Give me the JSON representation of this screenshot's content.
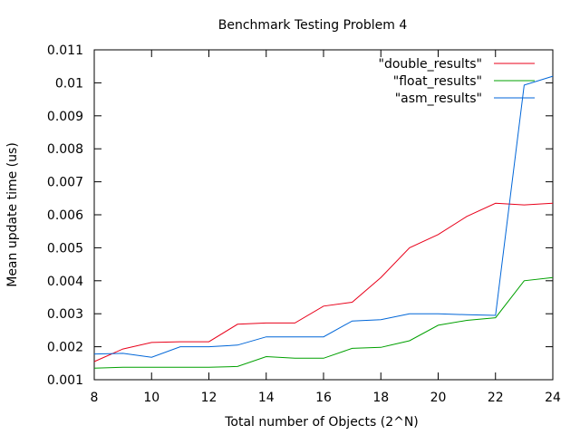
{
  "chart_data": {
    "type": "line",
    "title": "Benchmark Testing Problem 4",
    "xlabel": "Total number of Objects (2^N)",
    "ylabel": "Mean update time  (us)",
    "xlim": [
      8,
      24
    ],
    "ylim": [
      0.001,
      0.011
    ],
    "x_ticks": [
      8,
      10,
      12,
      14,
      16,
      18,
      20,
      22,
      24
    ],
    "y_ticks": [
      0.001,
      0.002,
      0.003,
      0.004,
      0.005,
      0.006,
      0.007,
      0.008,
      0.009,
      0.01,
      0.011
    ],
    "x_tick_labels": [
      "8",
      "10",
      "12",
      "14",
      "16",
      "18",
      "20",
      "22",
      "24"
    ],
    "y_tick_labels": [
      "0.001",
      "0.002",
      "0.003",
      "0.004",
      "0.005",
      "0.006",
      "0.007",
      "0.008",
      "0.009",
      "0.01",
      "0.011"
    ],
    "grid": false,
    "legend_position": "top-right",
    "x": [
      8,
      9,
      10,
      11,
      12,
      13,
      14,
      15,
      16,
      17,
      18,
      19,
      20,
      21,
      22,
      23,
      24
    ],
    "series": [
      {
        "name": "\"double_results\"",
        "color": "#e8001a",
        "values": [
          0.00155,
          0.00193,
          0.00213,
          0.00215,
          0.00215,
          0.00268,
          0.00272,
          0.00272,
          0.00323,
          0.00335,
          0.0041,
          0.005,
          0.0054,
          0.00595,
          0.00635,
          0.0063,
          0.00635
        ]
      },
      {
        "name": "\"float_results\"",
        "color": "#00a000",
        "values": [
          0.00135,
          0.00138,
          0.00138,
          0.00138,
          0.00138,
          0.0014,
          0.0017,
          0.00165,
          0.00165,
          0.00195,
          0.00198,
          0.00218,
          0.00265,
          0.0028,
          0.00288,
          0.004,
          0.0041
        ]
      },
      {
        "name": "\"asm_results\"",
        "color": "#0066d8",
        "values": [
          0.00178,
          0.0018,
          0.00168,
          0.002,
          0.002,
          0.00205,
          0.0023,
          0.0023,
          0.0023,
          0.00278,
          0.00282,
          0.003,
          0.003,
          0.00297,
          0.00295,
          0.00993,
          0.0102
        ]
      }
    ]
  }
}
